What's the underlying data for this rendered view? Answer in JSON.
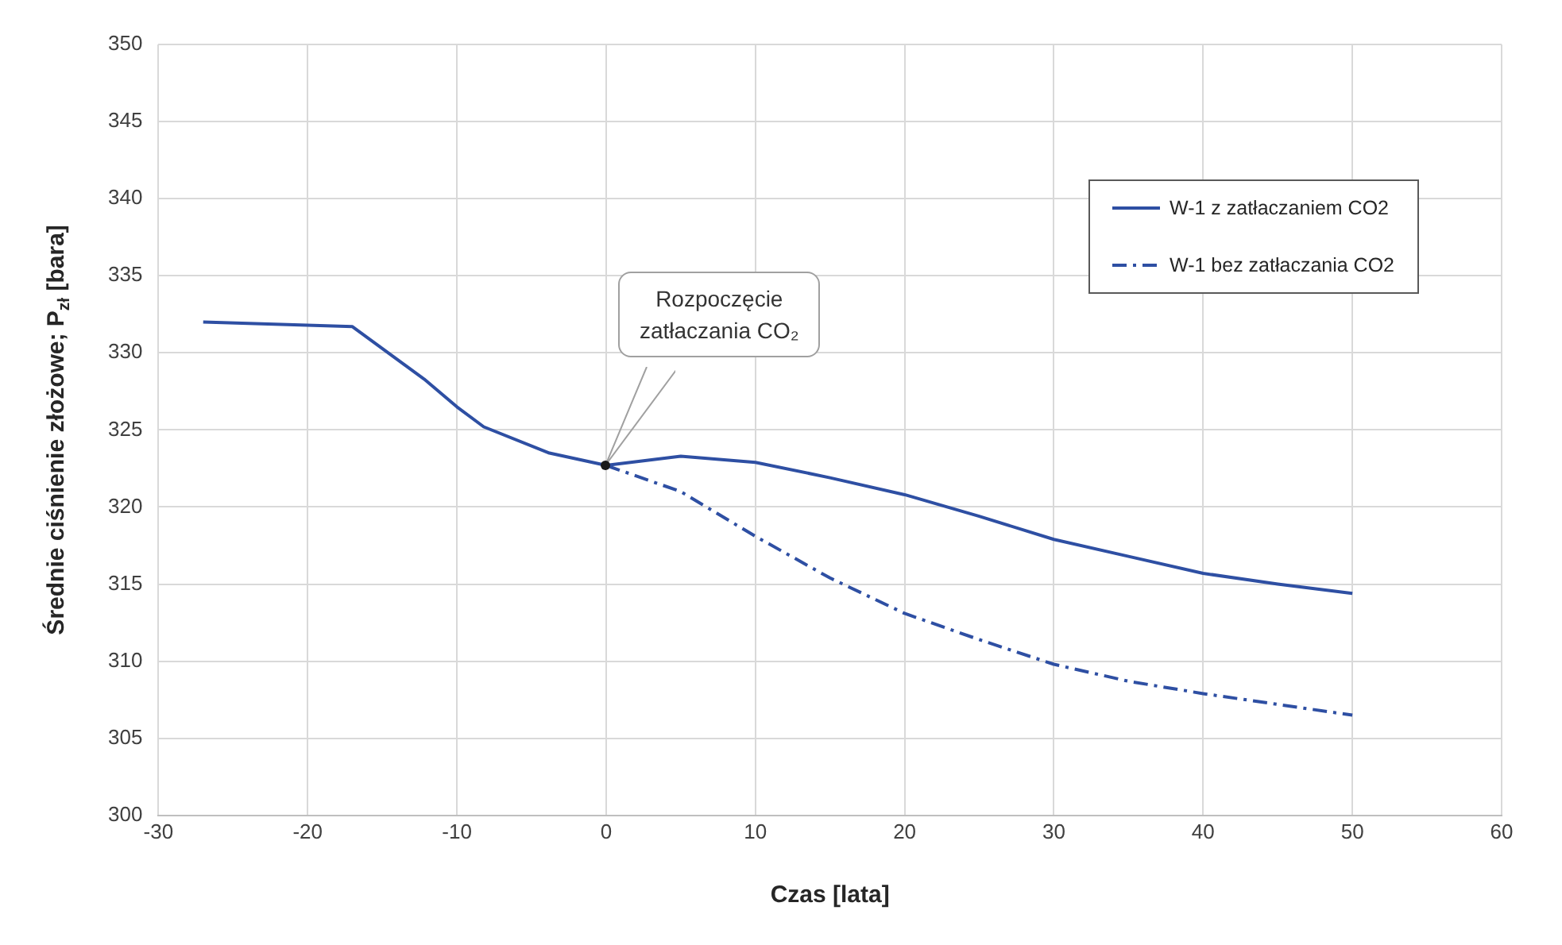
{
  "chart_data": {
    "type": "line",
    "xlabel": "Czas [lata]",
    "ylabel": "Średnie ciśnienie złożowe; P$_{zł}$ [bara]",
    "xlim": [
      -30,
      60
    ],
    "xticks": [
      -30,
      -20,
      -10,
      0,
      10,
      20,
      30,
      40,
      50,
      60
    ],
    "ylim": [
      300,
      350
    ],
    "yticks": [
      300,
      305,
      310,
      315,
      320,
      325,
      330,
      335,
      340,
      345,
      350
    ],
    "grid": true,
    "legend": "top right",
    "marker": "none",
    "series": [
      {
        "name": "W-1 z zatłaczaniem CO2",
        "color": "#2e4fa3",
        "line_style": "solid",
        "x": [
          -27,
          -17,
          -12.2,
          -10,
          -8.2,
          -3.8,
          0,
          5,
          10,
          15,
          20,
          25,
          30,
          35,
          40,
          45,
          50
        ],
        "values": [
          332,
          331.7,
          328.3,
          326.5,
          325.2,
          323.5,
          322.7,
          323.3,
          322.9,
          321.9,
          320.8,
          319.4,
          317.9,
          316.8,
          315.7,
          315,
          314.4
        ]
      },
      {
        "name": "W-1 bez zatłaczania CO2",
        "color": "#2e4fa3",
        "line_style": "dashed",
        "x": [
          0,
          5,
          10,
          15,
          20,
          25,
          30,
          35,
          40,
          45,
          50
        ],
        "values": [
          322.7,
          321,
          318.1,
          315.4,
          313.1,
          311.4,
          309.8,
          308.7,
          307.9,
          307.2,
          306.5
        ]
      }
    ],
    "annotations": [
      "Rozpoczęcie\nzatłaczania CO₂"
    ]
  }
}
